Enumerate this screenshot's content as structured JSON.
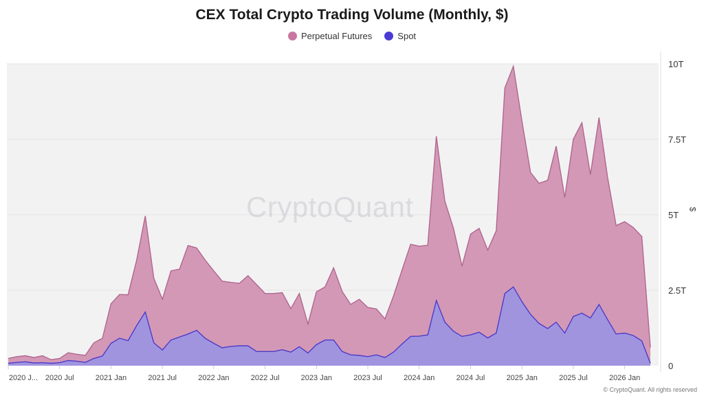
{
  "chart_data": {
    "type": "area",
    "title": "CEX Total Crypto Trading Volume (Monthly, $)",
    "xlabel": "",
    "ylabel": "$",
    "ylim": [
      0,
      10
    ],
    "y_unit": "T (trillion USD)",
    "y_ticks": [
      0,
      2.5,
      5,
      7.5,
      10
    ],
    "y_tick_labels": [
      "0",
      "2.5T",
      "5T",
      "7.5T",
      "10T"
    ],
    "x_ticks": [
      "2020-01",
      "2020-07",
      "2021-01",
      "2021-07",
      "2022-01",
      "2022-07",
      "2023-01",
      "2023-07",
      "2024-01",
      "2024-07",
      "2025-01",
      "2025-07",
      "2026-01"
    ],
    "x_tick_labels": [
      "2020 J...",
      "2020 Jul",
      "2021 Jan",
      "2021 Jul",
      "2022 Jan",
      "2022 Jul",
      "2023 Jan",
      "2023 Jul",
      "2024 Jan",
      "2024 Jul",
      "2025 Jan",
      "2025 Jul",
      "2026 Jan"
    ],
    "grid": true,
    "legend": "top-center",
    "watermark": "CryptoQuant",
    "x": [
      "2020-01",
      "2020-02",
      "2020-03",
      "2020-04",
      "2020-05",
      "2020-06",
      "2020-07",
      "2020-08",
      "2020-09",
      "2020-10",
      "2020-11",
      "2020-12",
      "2021-01",
      "2021-02",
      "2021-03",
      "2021-04",
      "2021-05",
      "2021-06",
      "2021-07",
      "2021-08",
      "2021-09",
      "2021-10",
      "2021-11",
      "2021-12",
      "2022-01",
      "2022-02",
      "2022-03",
      "2022-04",
      "2022-05",
      "2022-06",
      "2022-07",
      "2022-08",
      "2022-09",
      "2022-10",
      "2022-11",
      "2022-12",
      "2023-01",
      "2023-02",
      "2023-03",
      "2023-04",
      "2023-05",
      "2023-06",
      "2023-07",
      "2023-08",
      "2023-09",
      "2023-10",
      "2023-11",
      "2023-12",
      "2024-01",
      "2024-02",
      "2024-03",
      "2024-04",
      "2024-05",
      "2024-06",
      "2024-07",
      "2024-08",
      "2024-09",
      "2024-10",
      "2024-11",
      "2024-12",
      "2025-01",
      "2025-02",
      "2025-03",
      "2025-04",
      "2025-05",
      "2025-06",
      "2025-07",
      "2025-08",
      "2025-09",
      "2025-10",
      "2025-11",
      "2025-12",
      "2026-01",
      "2026-02",
      "2026-03",
      "2026-04"
    ],
    "series": [
      {
        "name": "Perpetual Futures",
        "color": "#d292b3",
        "line_color": "#b0668e",
        "values": [
          0.24,
          0.3,
          0.33,
          0.27,
          0.33,
          0.2,
          0.24,
          0.43,
          0.38,
          0.34,
          0.76,
          0.91,
          2.05,
          2.36,
          2.35,
          3.5,
          4.96,
          2.9,
          2.2,
          3.14,
          3.2,
          3.98,
          3.9,
          3.5,
          3.14,
          2.8,
          2.76,
          2.73,
          2.98,
          2.69,
          2.39,
          2.39,
          2.42,
          1.89,
          2.39,
          1.38,
          2.45,
          2.61,
          3.24,
          2.46,
          2.03,
          2.2,
          1.93,
          1.88,
          1.55,
          2.31,
          3.18,
          4.02,
          3.96,
          3.99,
          7.6,
          5.45,
          4.55,
          3.3,
          4.36,
          4.55,
          3.83,
          4.47,
          9.2,
          9.92,
          8.1,
          6.4,
          6.04,
          6.14,
          7.27,
          5.57,
          7.5,
          8.05,
          6.33,
          8.22,
          6.25,
          4.64,
          4.77,
          4.58,
          4.28,
          0.6
        ]
      },
      {
        "name": "Spot",
        "color": "#9e94e0",
        "line_color": "#4b3cc8",
        "values": [
          0.08,
          0.11,
          0.13,
          0.09,
          0.1,
          0.08,
          0.1,
          0.17,
          0.15,
          0.11,
          0.24,
          0.32,
          0.74,
          0.91,
          0.83,
          1.33,
          1.78,
          0.76,
          0.52,
          0.85,
          0.95,
          1.05,
          1.17,
          0.91,
          0.74,
          0.59,
          0.64,
          0.66,
          0.66,
          0.47,
          0.47,
          0.47,
          0.53,
          0.45,
          0.63,
          0.42,
          0.7,
          0.85,
          0.85,
          0.47,
          0.36,
          0.34,
          0.3,
          0.36,
          0.27,
          0.45,
          0.72,
          0.97,
          0.98,
          1.02,
          2.16,
          1.44,
          1.14,
          0.97,
          1.02,
          1.11,
          0.92,
          1.08,
          2.39,
          2.61,
          2.12,
          1.7,
          1.4,
          1.23,
          1.44,
          1.08,
          1.63,
          1.74,
          1.58,
          2.03,
          1.53,
          1.05,
          1.08,
          1.0,
          0.82,
          0.08
        ]
      }
    ]
  },
  "legend": {
    "items": [
      {
        "label": "Perpetual Futures",
        "color": "#c9769f"
      },
      {
        "label": "Spot",
        "color": "#4b3bd6"
      }
    ]
  },
  "footer": {
    "copyright": "© CryptoQuant. All rights reserved"
  }
}
